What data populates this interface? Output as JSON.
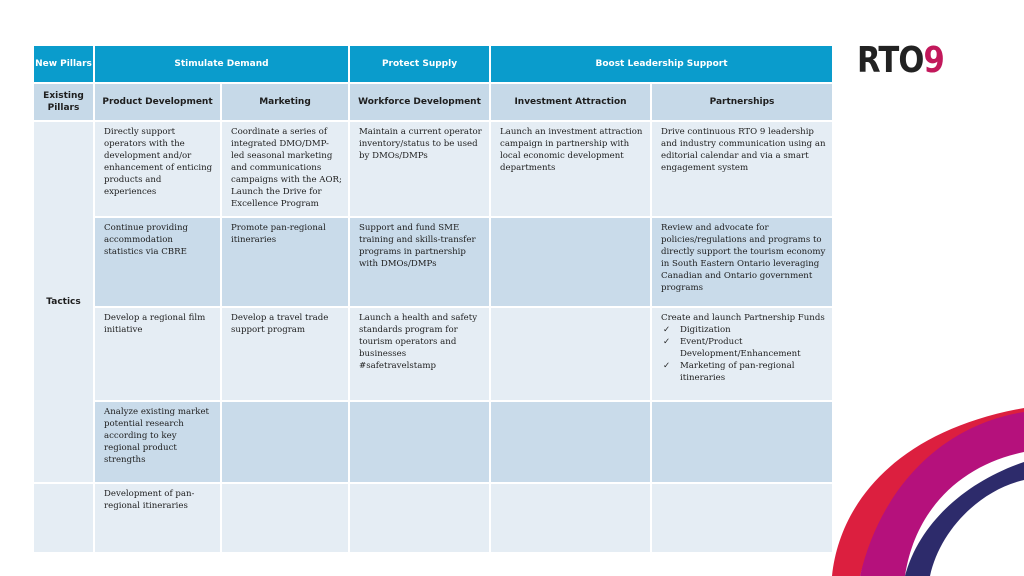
{
  "logo": {
    "text": "RTO",
    "nine": "9"
  },
  "header": {
    "new_pillars": "New Pillars",
    "groups": [
      "Stimulate Demand",
      "Protect Supply",
      "Boost Leadership Support"
    ],
    "existing_pillars": "Existing Pillars",
    "columns": [
      "Product Development",
      "Marketing",
      "Workforce Development",
      "Investment Attraction",
      "Partnerships"
    ]
  },
  "tactics_label": "Tactics",
  "rows": [
    [
      "Directly support operators with the development and/or enhancement of enticing products and experiences",
      "Coordinate a series of integrated DMO/DMP-led seasonal marketing and communications campaigns with the AOR; Launch the Drive for Excellence Program",
      "Maintain a current operator inventory/status to be used by DMOs/DMPs",
      "Launch an investment attraction campaign in partnership with local economic development departments",
      "Drive continuous RTO 9 leadership and industry communication using an editorial calendar and via a smart engagement system"
    ],
    [
      "Continue providing accommodation statistics via CBRE",
      "Promote pan-regional itineraries",
      "Support and fund SME training and skills-transfer programs in partnership with DMOs/DMPs",
      "",
      "Review and advocate for policies/regulations and programs to directly support the tourism economy in South Eastern Ontario leveraging Canadian and Ontario government programs"
    ],
    [
      "Develop a regional film initiative",
      "Develop  a travel trade support program",
      "Launch a health and safety standards program for tourism operators and businesses #safetravelstamp",
      "",
      ""
    ],
    [
      "Analyze existing market potential research according to key regional product strengths",
      "",
      "",
      "",
      ""
    ],
    [
      "Development of pan-regional itineraries",
      "",
      "",
      "",
      ""
    ]
  ],
  "partnership_funds": {
    "title": "Create and launch Partnership Funds",
    "items": [
      "Digitization",
      "Event/Product Development/Enhancement",
      "Marketing of pan-regional itineraries"
    ],
    "icon": "check-icon"
  },
  "colors": {
    "header": "#0a9ccc",
    "subheader": "#c6d9e8",
    "row_light": "#e5edf4",
    "row_dark": "#c9dbea"
  }
}
